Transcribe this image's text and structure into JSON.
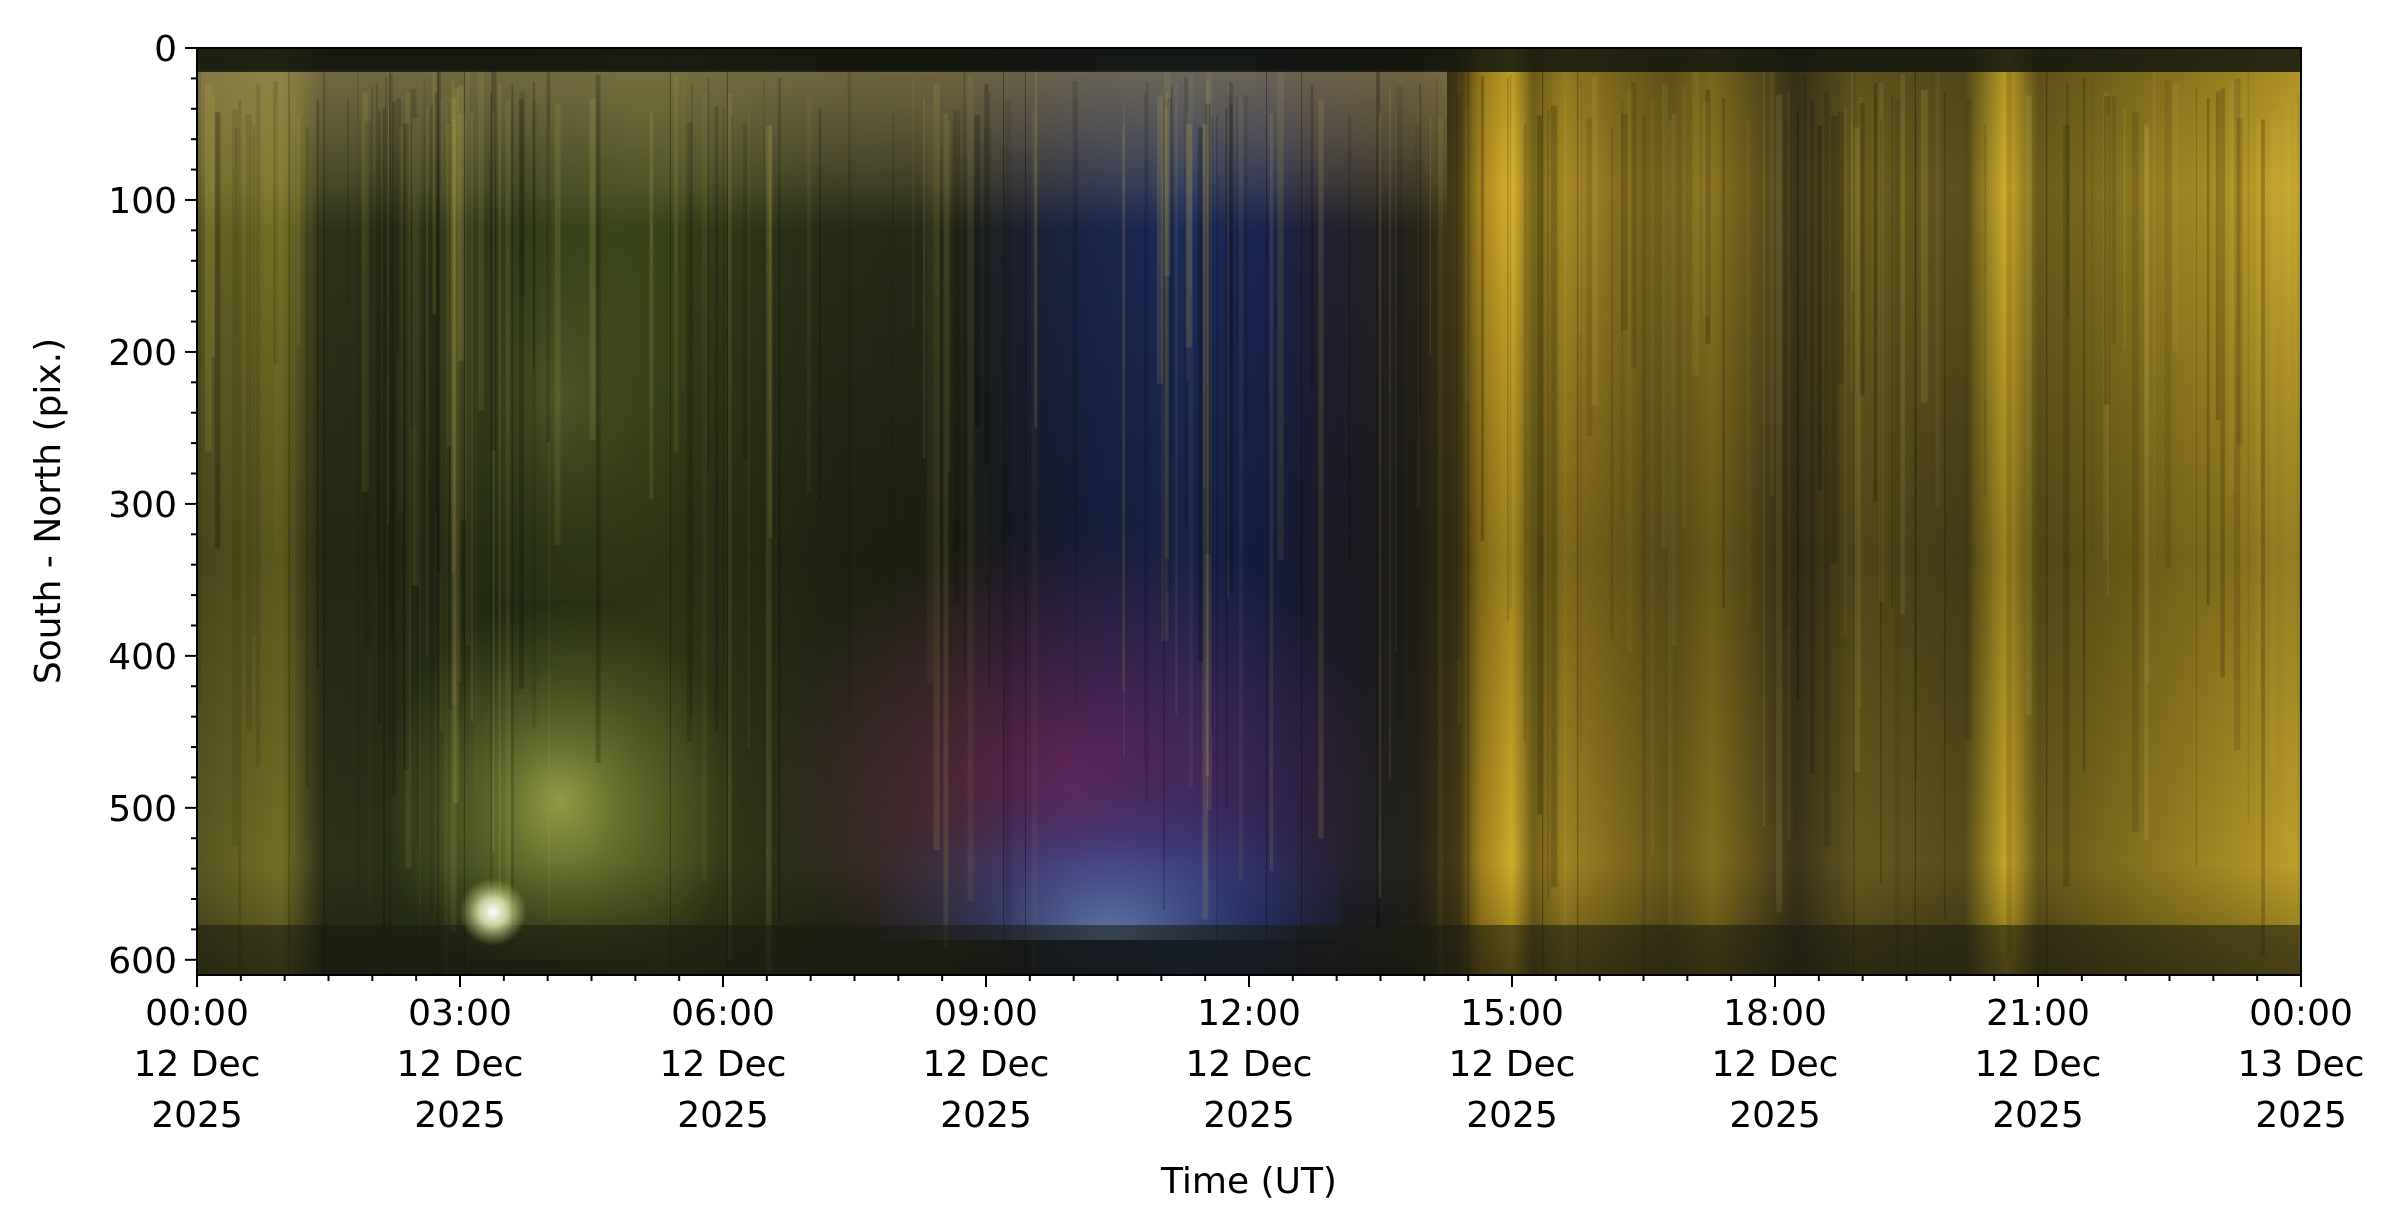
{
  "chart_data": {
    "type": "heatmap",
    "title": "",
    "xlabel": "Time (UT)",
    "ylabel": "South - North (pix.)",
    "ylim": [
      0,
      610
    ],
    "y_inverted": true,
    "y_ticks": [
      0,
      100,
      200,
      300,
      400,
      500,
      600
    ],
    "y_tick_labels": [
      "0",
      "100",
      "200",
      "300",
      "400",
      "500",
      "600"
    ],
    "y_minor_step": 20,
    "x_range_hours": [
      0,
      24
    ],
    "x_ticks_hours": [
      0,
      3,
      6,
      9,
      12,
      15,
      18,
      21,
      24
    ],
    "x_minor_step_hours": 0.5,
    "x_tick_labels": [
      [
        "00:00",
        "12 Dec",
        "2025"
      ],
      [
        "03:00",
        "12 Dec",
        "2025"
      ],
      [
        "06:00",
        "12 Dec",
        "2025"
      ],
      [
        "09:00",
        "12 Dec",
        "2025"
      ],
      [
        "12:00",
        "12 Dec",
        "2025"
      ],
      [
        "15:00",
        "12 Dec",
        "2025"
      ],
      [
        "18:00",
        "12 Dec",
        "2025"
      ],
      [
        "21:00",
        "12 Dec",
        "2025"
      ],
      [
        "00:00",
        "13 Dec",
        "2025"
      ]
    ],
    "grid": false,
    "colors": {
      "sky_dark": "#1c2214",
      "aurora_green": "#7a8a30",
      "twilight_yellow": "#c9a52a",
      "night_blue": "#1e2e5c",
      "aurora_magenta": "#8a2a5a",
      "horizon_cyan": "#5a8ac8"
    },
    "regions": [
      {
        "name": "daylight-yellow",
        "x_hours": [
          14.4,
          24
        ],
        "color": "#b8952a"
      },
      {
        "name": "night-blue",
        "x_hours": [
          9.2,
          12.6
        ],
        "color": "#1e2e5c"
      },
      {
        "name": "aurora-green-bottom",
        "x_hours": [
          2.5,
          5.5
        ],
        "color": "#8a9a3a"
      }
    ]
  }
}
